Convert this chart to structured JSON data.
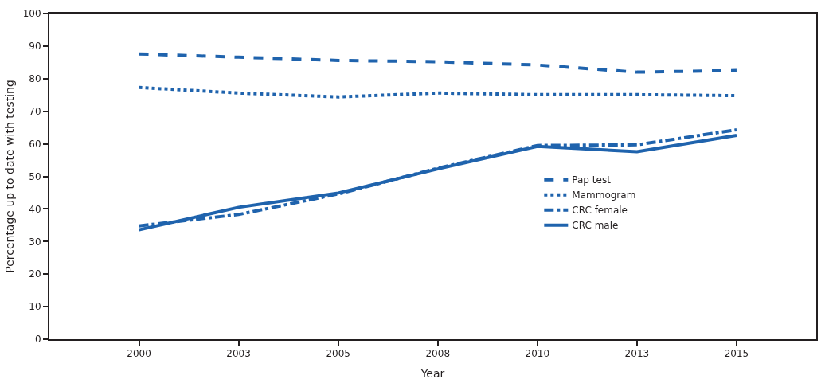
{
  "chart_data": {
    "type": "line",
    "xlabel": "Year",
    "ylabel": "Percentage up to date with testing",
    "categories": [
      "2000",
      "2003",
      "2005",
      "2008",
      "2010",
      "2013",
      "2015"
    ],
    "series": [
      {
        "name": "Pap test",
        "color": "#1f63ad",
        "line_style": "dashed",
        "values": [
          87.6,
          86.6,
          85.6,
          85.2,
          84.2,
          82.0,
          82.5
        ]
      },
      {
        "name": "Mammogram",
        "color": "#1f63ad",
        "line_style": "dotted",
        "values": [
          77.3,
          75.6,
          74.4,
          75.6,
          75.1,
          75.1,
          74.8
        ]
      },
      {
        "name": "CRC female",
        "color": "#1f63ad",
        "line_style": "dashdot",
        "values": [
          34.8,
          38.3,
          44.6,
          52.5,
          59.5,
          59.7,
          64.3
        ]
      },
      {
        "name": "CRC male",
        "color": "#1f63ad",
        "line_style": "solid",
        "values": [
          33.6,
          40.5,
          44.9,
          52.3,
          59.2,
          57.6,
          62.6
        ]
      }
    ],
    "ylim": [
      0,
      100
    ],
    "yticks": [
      0,
      10,
      20,
      30,
      40,
      50,
      60,
      70,
      80,
      90,
      100
    ],
    "grid": false,
    "legend": "right",
    "marker": "none"
  }
}
